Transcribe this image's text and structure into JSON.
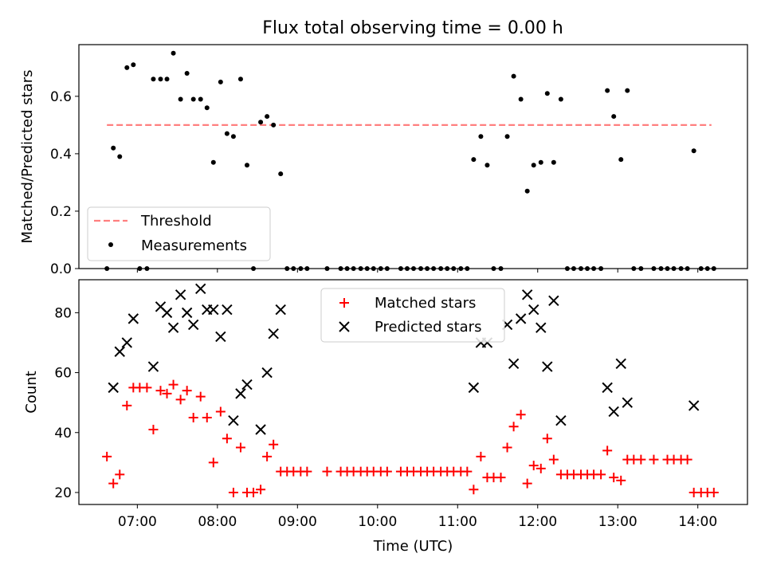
{
  "figure": {
    "title": "Flux total observing time = 0.00 h"
  },
  "chart_data": [
    {
      "type": "scatter",
      "title": "Flux total observing time = 0.00 h",
      "xlabel": "",
      "ylabel": "Matched/Predicted stars",
      "xlim": [
        6.27,
        14.62
      ],
      "ylim": [
        0,
        0.78
      ],
      "yticks": [
        0.0,
        0.2,
        0.4,
        0.6
      ],
      "ytick_labels": [
        "0.0",
        "0.2",
        "0.4",
        "0.6"
      ],
      "xticks": [
        7,
        8,
        9,
        10,
        11,
        12,
        13,
        14
      ],
      "grid": false,
      "legend": "lower-left",
      "threshold": {
        "name": "Threshold",
        "value": 0.5,
        "x": [
          6.62,
          14.17
        ],
        "color": "#ff7f7f",
        "style": "dashed"
      },
      "series": [
        {
          "name": "Measurements",
          "marker": "dot",
          "color": "#000000",
          "points": [
            [
              6.62,
              0.0
            ],
            [
              6.7,
              0.42
            ],
            [
              6.78,
              0.39
            ],
            [
              6.87,
              0.7
            ],
            [
              6.95,
              0.71
            ],
            [
              7.03,
              0.0
            ],
            [
              7.12,
              0.0
            ],
            [
              7.2,
              0.66
            ],
            [
              7.29,
              0.66
            ],
            [
              7.37,
              0.66
            ],
            [
              7.45,
              0.75
            ],
            [
              7.54,
              0.59
            ],
            [
              7.62,
              0.68
            ],
            [
              7.7,
              0.59
            ],
            [
              7.79,
              0.59
            ],
            [
              7.87,
              0.56
            ],
            [
              7.95,
              0.37
            ],
            [
              8.04,
              0.65
            ],
            [
              8.12,
              0.47
            ],
            [
              8.2,
              0.46
            ],
            [
              8.29,
              0.66
            ],
            [
              8.37,
              0.36
            ],
            [
              8.45,
              0.0
            ],
            [
              8.54,
              0.51
            ],
            [
              8.62,
              0.53
            ],
            [
              8.7,
              0.5
            ],
            [
              8.79,
              0.33
            ],
            [
              8.87,
              0.0
            ],
            [
              8.95,
              0.0
            ],
            [
              9.04,
              0.0
            ],
            [
              9.12,
              0.0
            ],
            [
              9.37,
              0.0
            ],
            [
              9.54,
              0.0
            ],
            [
              9.62,
              0.0
            ],
            [
              9.7,
              0.0
            ],
            [
              9.79,
              0.0
            ],
            [
              9.87,
              0.0
            ],
            [
              9.95,
              0.0
            ],
            [
              10.04,
              0.0
            ],
            [
              10.12,
              0.0
            ],
            [
              10.29,
              0.0
            ],
            [
              10.37,
              0.0
            ],
            [
              10.45,
              0.0
            ],
            [
              10.54,
              0.0
            ],
            [
              10.62,
              0.0
            ],
            [
              10.7,
              0.0
            ],
            [
              10.79,
              0.0
            ],
            [
              10.87,
              0.0
            ],
            [
              10.95,
              0.0
            ],
            [
              11.04,
              0.0
            ],
            [
              11.12,
              0.0
            ],
            [
              11.2,
              0.38
            ],
            [
              11.29,
              0.46
            ],
            [
              11.37,
              0.36
            ],
            [
              11.45,
              0.0
            ],
            [
              11.54,
              0.0
            ],
            [
              11.62,
              0.46
            ],
            [
              11.7,
              0.67
            ],
            [
              11.79,
              0.59
            ],
            [
              11.87,
              0.27
            ],
            [
              11.95,
              0.36
            ],
            [
              12.04,
              0.37
            ],
            [
              12.12,
              0.61
            ],
            [
              12.2,
              0.37
            ],
            [
              12.29,
              0.59
            ],
            [
              12.37,
              0.0
            ],
            [
              12.45,
              0.0
            ],
            [
              12.54,
              0.0
            ],
            [
              12.62,
              0.0
            ],
            [
              12.7,
              0.0
            ],
            [
              12.79,
              0.0
            ],
            [
              12.87,
              0.62
            ],
            [
              12.95,
              0.53
            ],
            [
              13.04,
              0.38
            ],
            [
              13.12,
              0.62
            ],
            [
              13.2,
              0.0
            ],
            [
              13.29,
              0.0
            ],
            [
              13.45,
              0.0
            ],
            [
              13.54,
              0.0
            ],
            [
              13.62,
              0.0
            ],
            [
              13.7,
              0.0
            ],
            [
              13.79,
              0.0
            ],
            [
              13.87,
              0.0
            ],
            [
              13.95,
              0.41
            ],
            [
              14.04,
              0.0
            ],
            [
              14.12,
              0.0
            ],
            [
              14.2,
              0.0
            ]
          ]
        }
      ]
    },
    {
      "type": "scatter",
      "title": "",
      "xlabel": "Time (UTC)",
      "ylabel": "Count",
      "xlim": [
        6.27,
        14.62
      ],
      "ylim": [
        16,
        91
      ],
      "yticks": [
        20,
        40,
        60,
        80
      ],
      "ytick_labels": [
        "20",
        "40",
        "60",
        "80"
      ],
      "xticks": [
        7,
        8,
        9,
        10,
        11,
        12,
        13,
        14
      ],
      "xtick_labels": [
        "07:00",
        "08:00",
        "09:00",
        "10:00",
        "11:00",
        "12:00",
        "13:00",
        "14:00"
      ],
      "grid": false,
      "legend": "upper-center",
      "series": [
        {
          "name": "Matched stars",
          "marker": "plus",
          "color": "#ff0000",
          "points": [
            [
              6.62,
              32
            ],
            [
              6.7,
              23
            ],
            [
              6.78,
              26
            ],
            [
              6.87,
              49
            ],
            [
              6.95,
              55
            ],
            [
              7.03,
              55
            ],
            [
              7.12,
              55
            ],
            [
              7.2,
              41
            ],
            [
              7.29,
              54
            ],
            [
              7.37,
              53
            ],
            [
              7.45,
              56
            ],
            [
              7.54,
              51
            ],
            [
              7.62,
              54
            ],
            [
              7.7,
              45
            ],
            [
              7.79,
              52
            ],
            [
              7.87,
              45
            ],
            [
              7.95,
              30
            ],
            [
              8.04,
              47
            ],
            [
              8.12,
              38
            ],
            [
              8.2,
              20
            ],
            [
              8.29,
              35
            ],
            [
              8.37,
              20
            ],
            [
              8.45,
              20
            ],
            [
              8.54,
              21
            ],
            [
              8.62,
              32
            ],
            [
              8.7,
              36
            ],
            [
              8.79,
              27
            ],
            [
              8.87,
              27
            ],
            [
              8.95,
              27
            ],
            [
              9.04,
              27
            ],
            [
              9.12,
              27
            ],
            [
              9.37,
              27
            ],
            [
              9.54,
              27
            ],
            [
              9.62,
              27
            ],
            [
              9.7,
              27
            ],
            [
              9.79,
              27
            ],
            [
              9.87,
              27
            ],
            [
              9.95,
              27
            ],
            [
              10.04,
              27
            ],
            [
              10.12,
              27
            ],
            [
              10.29,
              27
            ],
            [
              10.37,
              27
            ],
            [
              10.45,
              27
            ],
            [
              10.54,
              27
            ],
            [
              10.62,
              27
            ],
            [
              10.7,
              27
            ],
            [
              10.79,
              27
            ],
            [
              10.87,
              27
            ],
            [
              10.95,
              27
            ],
            [
              11.04,
              27
            ],
            [
              11.12,
              27
            ],
            [
              11.2,
              21
            ],
            [
              11.29,
              32
            ],
            [
              11.37,
              25
            ],
            [
              11.45,
              25
            ],
            [
              11.54,
              25
            ],
            [
              11.62,
              35
            ],
            [
              11.7,
              42
            ],
            [
              11.79,
              46
            ],
            [
              11.87,
              23
            ],
            [
              11.95,
              29
            ],
            [
              12.04,
              28
            ],
            [
              12.12,
              38
            ],
            [
              12.2,
              31
            ],
            [
              12.29,
              26
            ],
            [
              12.37,
              26
            ],
            [
              12.45,
              26
            ],
            [
              12.54,
              26
            ],
            [
              12.62,
              26
            ],
            [
              12.7,
              26
            ],
            [
              12.79,
              26
            ],
            [
              12.87,
              34
            ],
            [
              12.95,
              25
            ],
            [
              13.04,
              24
            ],
            [
              13.12,
              31
            ],
            [
              13.2,
              31
            ],
            [
              13.29,
              31
            ],
            [
              13.45,
              31
            ],
            [
              13.62,
              31
            ],
            [
              13.7,
              31
            ],
            [
              13.79,
              31
            ],
            [
              13.87,
              31
            ],
            [
              13.95,
              20
            ],
            [
              14.04,
              20
            ],
            [
              14.12,
              20
            ],
            [
              14.2,
              20
            ]
          ]
        },
        {
          "name": "Predicted stars",
          "marker": "x",
          "color": "#000000",
          "points": [
            [
              6.7,
              55
            ],
            [
              6.78,
              67
            ],
            [
              6.87,
              70
            ],
            [
              6.95,
              78
            ],
            [
              7.2,
              62
            ],
            [
              7.29,
              82
            ],
            [
              7.37,
              80
            ],
            [
              7.45,
              75
            ],
            [
              7.54,
              86
            ],
            [
              7.62,
              80
            ],
            [
              7.7,
              76
            ],
            [
              7.79,
              88
            ],
            [
              7.87,
              81
            ],
            [
              7.95,
              81
            ],
            [
              8.04,
              72
            ],
            [
              8.12,
              81
            ],
            [
              8.2,
              44
            ],
            [
              8.29,
              53
            ],
            [
              8.37,
              56
            ],
            [
              8.54,
              41
            ],
            [
              8.62,
              60
            ],
            [
              8.7,
              73
            ],
            [
              8.79,
              81
            ],
            [
              11.2,
              55
            ],
            [
              11.29,
              70
            ],
            [
              11.37,
              70
            ],
            [
              11.62,
              76
            ],
            [
              11.7,
              63
            ],
            [
              11.79,
              78
            ],
            [
              11.87,
              86
            ],
            [
              11.95,
              81
            ],
            [
              12.04,
              75
            ],
            [
              12.12,
              62
            ],
            [
              12.2,
              84
            ],
            [
              12.29,
              44
            ],
            [
              12.87,
              55
            ],
            [
              12.95,
              47
            ],
            [
              13.04,
              63
            ],
            [
              13.12,
              50
            ],
            [
              13.95,
              49
            ]
          ]
        }
      ]
    }
  ]
}
